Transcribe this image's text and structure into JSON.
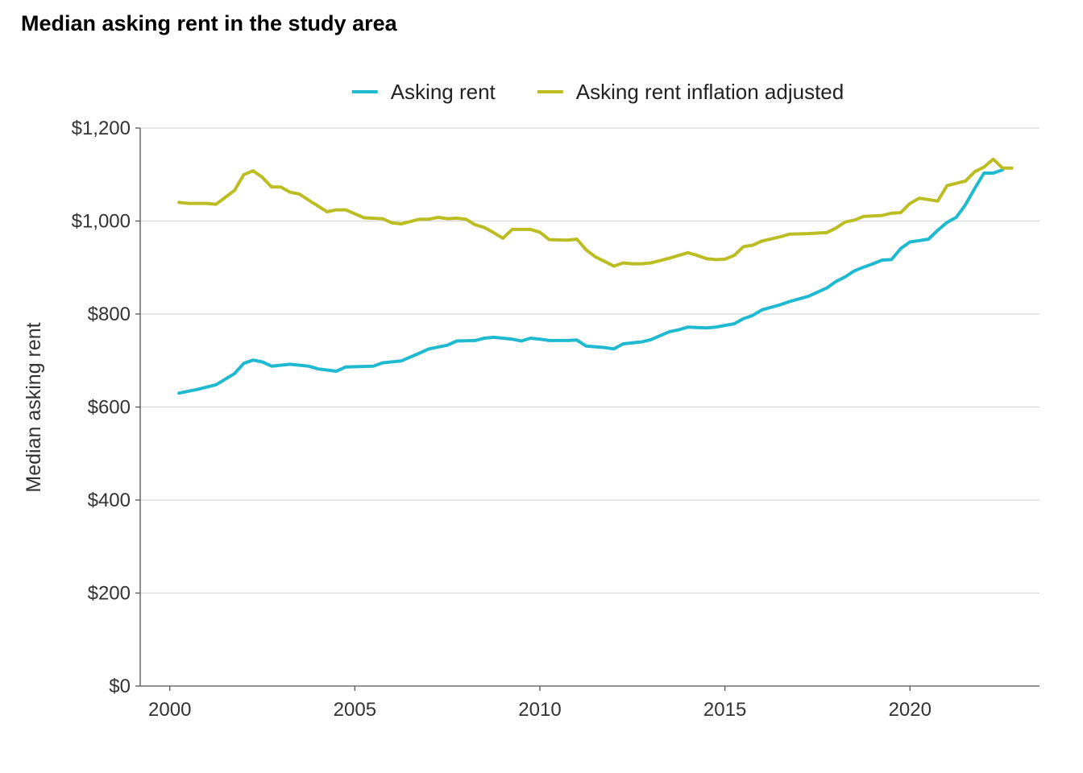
{
  "chart_data": {
    "type": "line",
    "title": "Median asking rent in the study area",
    "ylabel": "Median asking rent",
    "xlabel": "",
    "xlim": [
      1999.2,
      2023.5
    ],
    "ylim": [
      0,
      1200
    ],
    "x_ticks": [
      2000,
      2005,
      2010,
      2015,
      2020
    ],
    "x_tick_labels": [
      "2000",
      "2005",
      "2010",
      "2015",
      "2020"
    ],
    "y_ticks": [
      0,
      200,
      400,
      600,
      800,
      1000,
      1200
    ],
    "y_tick_labels": [
      "$0",
      "$200",
      "$400",
      "$600",
      "$800",
      "$1,000",
      "$1,200"
    ],
    "grid": "horizontal",
    "legend_position": "top",
    "series": [
      {
        "name": "Asking rent",
        "color": "#1fbad0",
        "points": [
          [
            2000.25,
            630
          ],
          [
            2000.75,
            638
          ],
          [
            2001.25,
            648
          ],
          [
            2001.75,
            672
          ],
          [
            2002.0,
            694
          ],
          [
            2002.25,
            701
          ],
          [
            2002.5,
            697
          ],
          [
            2002.75,
            688
          ],
          [
            2003.25,
            692
          ],
          [
            2003.75,
            688
          ],
          [
            2004.0,
            682
          ],
          [
            2004.5,
            677
          ],
          [
            2004.75,
            686
          ],
          [
            2005.5,
            688
          ],
          [
            2005.75,
            695
          ],
          [
            2006.25,
            699
          ],
          [
            2006.75,
            716
          ],
          [
            2007.0,
            725
          ],
          [
            2007.5,
            733
          ],
          [
            2007.75,
            742
          ],
          [
            2008.25,
            743
          ],
          [
            2008.5,
            748
          ],
          [
            2008.75,
            750
          ],
          [
            2009.0,
            748
          ],
          [
            2009.25,
            746
          ],
          [
            2009.5,
            742
          ],
          [
            2009.75,
            748
          ],
          [
            2010.0,
            746
          ],
          [
            2010.25,
            743
          ],
          [
            2010.75,
            743
          ],
          [
            2011.0,
            744
          ],
          [
            2011.25,
            731
          ],
          [
            2011.75,
            728
          ],
          [
            2012.0,
            725
          ],
          [
            2012.25,
            736
          ],
          [
            2012.75,
            740
          ],
          [
            2013.0,
            745
          ],
          [
            2013.5,
            762
          ],
          [
            2013.75,
            766
          ],
          [
            2014.0,
            772
          ],
          [
            2014.5,
            770
          ],
          [
            2014.75,
            772
          ],
          [
            2015.25,
            779
          ],
          [
            2015.5,
            790
          ],
          [
            2015.75,
            797
          ],
          [
            2016.0,
            809
          ],
          [
            2016.5,
            820
          ],
          [
            2016.75,
            827
          ],
          [
            2017.25,
            838
          ],
          [
            2017.75,
            856
          ],
          [
            2018.0,
            870
          ],
          [
            2018.25,
            880
          ],
          [
            2018.5,
            893
          ],
          [
            2018.75,
            901
          ],
          [
            2019.0,
            908
          ],
          [
            2019.25,
            916
          ],
          [
            2019.5,
            917
          ],
          [
            2019.75,
            941
          ],
          [
            2020.0,
            955
          ],
          [
            2020.25,
            958
          ],
          [
            2020.5,
            961
          ],
          [
            2020.75,
            980
          ],
          [
            2021.0,
            997
          ],
          [
            2021.25,
            1008
          ],
          [
            2021.5,
            1035
          ],
          [
            2021.75,
            1070
          ],
          [
            2022.0,
            1103
          ],
          [
            2022.25,
            1103
          ],
          [
            2022.5,
            1110
          ]
        ]
      },
      {
        "name": "Asking rent inflation adjusted",
        "color": "#bcbd22",
        "points": [
          [
            2000.25,
            1040
          ],
          [
            2000.5,
            1038
          ],
          [
            2001.0,
            1038
          ],
          [
            2001.25,
            1036
          ],
          [
            2001.75,
            1066
          ],
          [
            2002.0,
            1100
          ],
          [
            2002.25,
            1108
          ],
          [
            2002.5,
            1094
          ],
          [
            2002.75,
            1073
          ],
          [
            2003.0,
            1073
          ],
          [
            2003.25,
            1062
          ],
          [
            2003.5,
            1058
          ],
          [
            2003.75,
            1045
          ],
          [
            2004.25,
            1020
          ],
          [
            2004.5,
            1024
          ],
          [
            2004.75,
            1024
          ],
          [
            2005.25,
            1007
          ],
          [
            2005.75,
            1005
          ],
          [
            2006.0,
            996
          ],
          [
            2006.25,
            994
          ],
          [
            2006.75,
            1004
          ],
          [
            2007.0,
            1004
          ],
          [
            2007.25,
            1008
          ],
          [
            2007.5,
            1005
          ],
          [
            2007.75,
            1006
          ],
          [
            2008.0,
            1004
          ],
          [
            2008.25,
            992
          ],
          [
            2008.5,
            986
          ],
          [
            2008.75,
            975
          ],
          [
            2009.0,
            963
          ],
          [
            2009.25,
            982
          ],
          [
            2009.75,
            982
          ],
          [
            2010.0,
            976
          ],
          [
            2010.25,
            960
          ],
          [
            2010.75,
            959
          ],
          [
            2011.0,
            961
          ],
          [
            2011.25,
            938
          ],
          [
            2011.5,
            923
          ],
          [
            2011.75,
            913
          ],
          [
            2012.0,
            903
          ],
          [
            2012.25,
            910
          ],
          [
            2012.5,
            908
          ],
          [
            2012.75,
            908
          ],
          [
            2013.0,
            910
          ],
          [
            2013.5,
            920
          ],
          [
            2014.0,
            932
          ],
          [
            2014.25,
            926
          ],
          [
            2014.5,
            919
          ],
          [
            2014.75,
            917
          ],
          [
            2015.0,
            918
          ],
          [
            2015.25,
            926
          ],
          [
            2015.5,
            945
          ],
          [
            2015.75,
            948
          ],
          [
            2016.0,
            957
          ],
          [
            2016.5,
            966
          ],
          [
            2016.75,
            972
          ],
          [
            2017.25,
            973
          ],
          [
            2017.75,
            975
          ],
          [
            2018.0,
            985
          ],
          [
            2018.25,
            998
          ],
          [
            2018.5,
            1002
          ],
          [
            2018.75,
            1010
          ],
          [
            2019.25,
            1012
          ],
          [
            2019.5,
            1017
          ],
          [
            2019.75,
            1018
          ],
          [
            2020.0,
            1038
          ],
          [
            2020.25,
            1049
          ],
          [
            2020.5,
            1046
          ],
          [
            2020.75,
            1043
          ],
          [
            2021.0,
            1076
          ],
          [
            2021.5,
            1086
          ],
          [
            2021.75,
            1106
          ],
          [
            2022.0,
            1116
          ],
          [
            2022.25,
            1133
          ],
          [
            2022.5,
            1114
          ],
          [
            2022.75,
            1114
          ]
        ]
      }
    ]
  }
}
